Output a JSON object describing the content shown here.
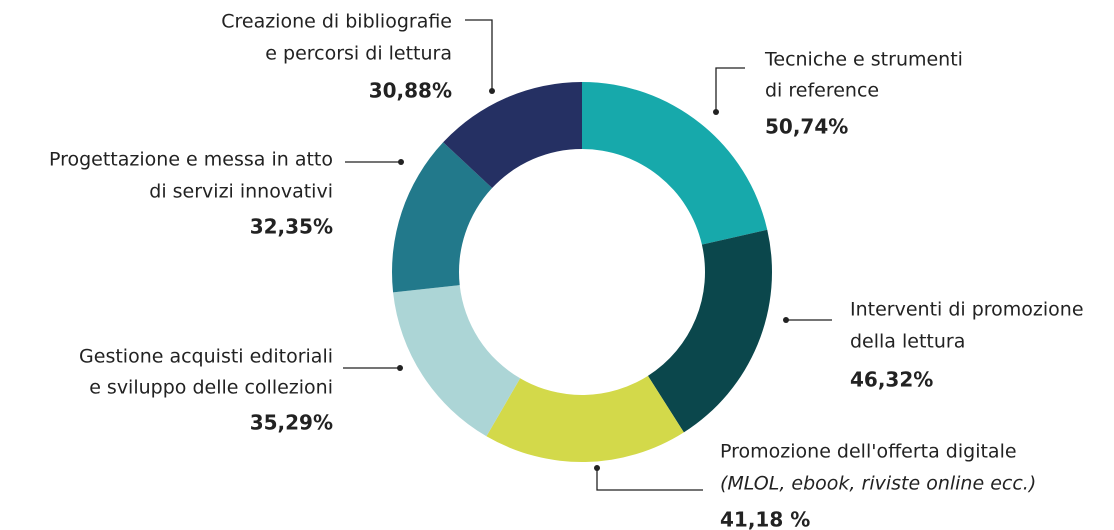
{
  "chart_data": {
    "type": "donut",
    "categories": [
      [
        "Tecniche e strumenti",
        "di reference"
      ],
      [
        "Interventi di promozione",
        "della lettura"
      ],
      [
        "Promozione dell'offerta digitale",
        "(MLOL, ebook, riviste online ecc.)"
      ],
      [
        "Gestione acquisti editoriali",
        "e sviluppo delle collezioni"
      ],
      [
        "Progettazione e messa in atto",
        "di servizi innovativi"
      ],
      [
        "Creazione di bibliografie",
        "e percorsi di lettura"
      ]
    ],
    "values": [
      50.74,
      46.32,
      41.18,
      35.29,
      32.35,
      30.88
    ],
    "value_labels": [
      "50,74%",
      "46,32%",
      "41,18 %",
      "35,29%",
      "32,35%",
      "30,88%"
    ],
    "colors": [
      "#17a9ab",
      "#0b474c",
      "#d3d94a",
      "#acd5d6",
      "#22798b",
      "#253063"
    ]
  }
}
